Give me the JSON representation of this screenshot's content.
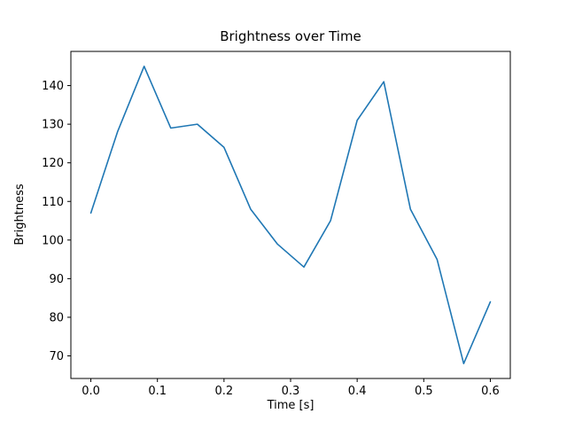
{
  "chart_data": {
    "type": "line",
    "title": "Brightness over Time",
    "xlabel": "Time [s]",
    "ylabel": "Brightness",
    "x": [
      0.0,
      0.04,
      0.08,
      0.12,
      0.16,
      0.2,
      0.24,
      0.28,
      0.32,
      0.36,
      0.4,
      0.44,
      0.48,
      0.52,
      0.56,
      0.6
    ],
    "y": [
      107,
      128,
      145,
      129,
      130,
      124,
      108,
      99,
      93,
      105,
      131,
      141,
      108,
      95,
      68,
      84
    ],
    "series_name": "Brightness",
    "line_color": "#1f77b4",
    "line_width": 1.6,
    "xlim": [
      -0.03,
      0.63
    ],
    "ylim": [
      64.15,
      148.85
    ],
    "xticks": {
      "values": [
        0.0,
        0.1,
        0.2,
        0.3,
        0.4,
        0.5,
        0.6
      ],
      "labels": [
        "0.0",
        "0.1",
        "0.2",
        "0.3",
        "0.4",
        "0.5",
        "0.6"
      ]
    },
    "yticks": {
      "values": [
        70,
        80,
        90,
        100,
        110,
        120,
        130,
        140
      ],
      "labels": [
        "70",
        "80",
        "90",
        "100",
        "110",
        "120",
        "130",
        "140"
      ]
    },
    "grid": false,
    "legend": "none",
    "background_color": "#ffffff",
    "spine_color": "#000000"
  }
}
